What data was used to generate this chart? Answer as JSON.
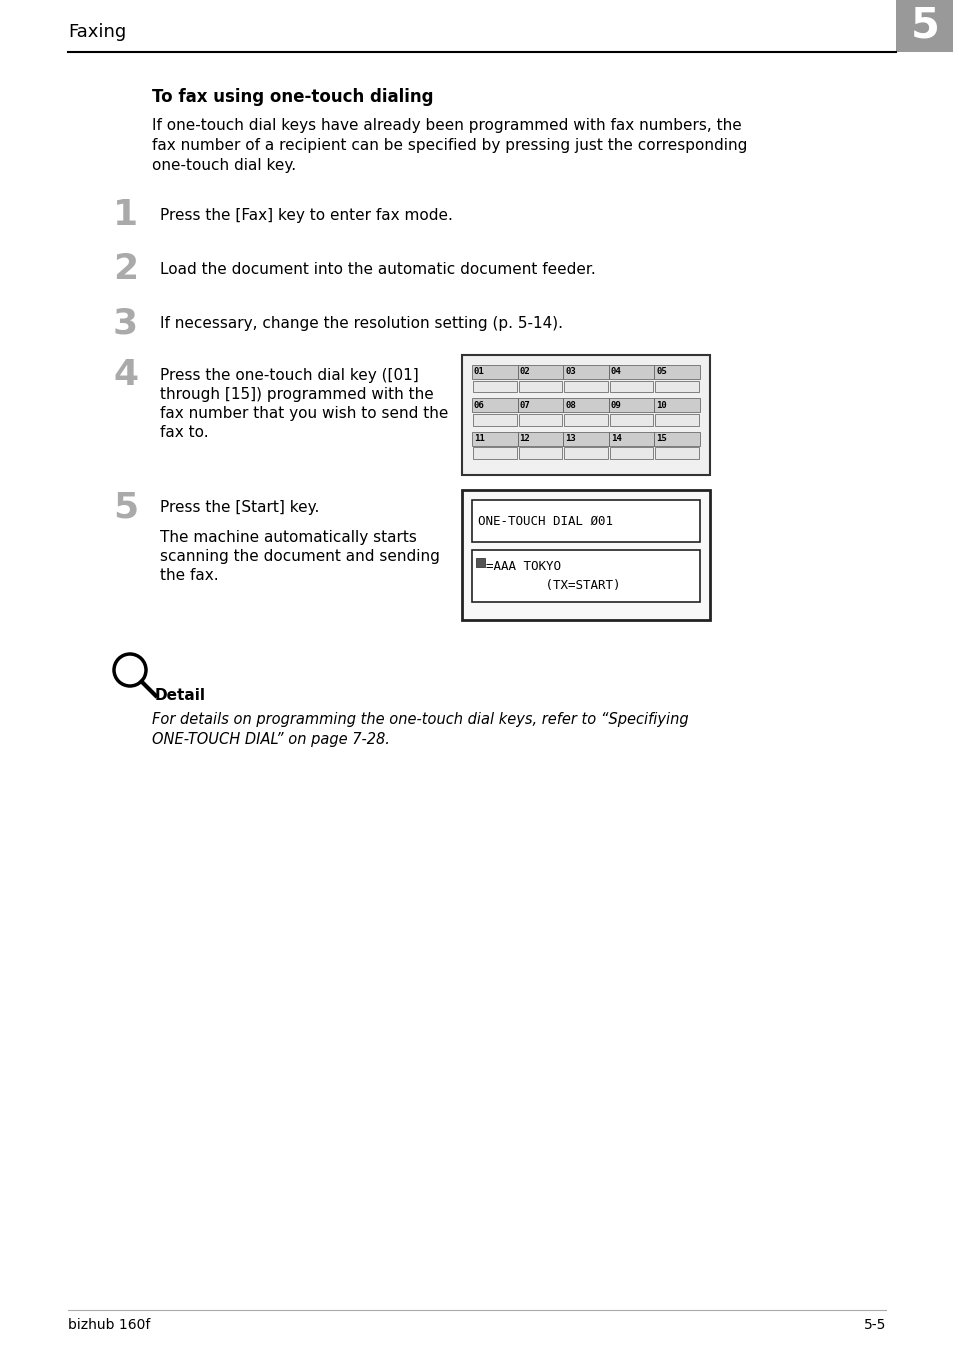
{
  "page_title": "Faxing",
  "chapter_num": "5",
  "section_title": "To fax using one-touch dialing",
  "intro_line1": "If one-touch dial keys have already been programmed with fax numbers, the",
  "intro_line2": "fax number of a recipient can be specified by pressing just the corresponding",
  "intro_line3": "one-touch dial key.",
  "step1_text": "Press the [Fax] key to enter fax mode.",
  "step2_text": "Load the document into the automatic document feeder.",
  "step3_text": "If necessary, change the resolution setting (p. 5-14).",
  "step4_line1": "Press the one-touch dial key ([01]",
  "step4_line2": "through [15]) programmed with the",
  "step4_line3": "fax number that you wish to send the",
  "step4_line4": "fax to.",
  "step5_text": "Press the [Start] key.",
  "step5_sub1": "The machine automatically starts",
  "step5_sub2": "scanning the document and sending",
  "step5_sub3": "the fax.",
  "detail_label": "Detail",
  "detail_line1": "For details on programming the one-touch dial keys, refer to “Specifiying",
  "detail_line2": "ONE-TOUCH DIAL” on page 7-28.",
  "footer_left": "bizhub 160f",
  "footer_right": "5-5",
  "bg_color": "#ffffff",
  "text_color": "#000000",
  "gray_num_color": "#aaaaaa",
  "chapter_box_color": "#999999",
  "keypad_labels": [
    [
      "01",
      "02",
      "03",
      "04",
      "05"
    ],
    [
      "06",
      "07",
      "08",
      "09",
      "10"
    ],
    [
      "11",
      "12",
      "13",
      "14",
      "15"
    ]
  ],
  "lcd_line1": "ONE-TOUCH DIAL Ø01",
  "lcd_line2": "ł=AAA TOKYO",
  "lcd_line3": "         (TX=START)"
}
